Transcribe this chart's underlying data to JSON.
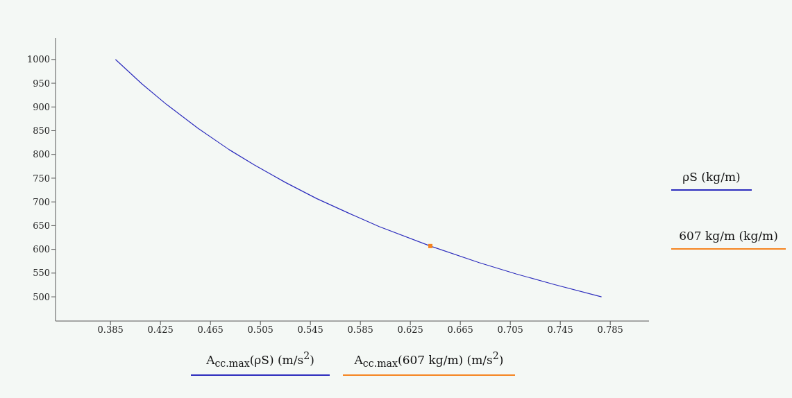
{
  "chart_data": {
    "type": "line",
    "xlabel": "A$_{cc.max}$(ρS)  (m/s$^{2}$)",
    "ylabel": "ρS  (kg/m)",
    "annotations": [
      "A$_{cc.max}$(607 kg/m)  (m/s$^{2}$)",
      "607 kg/m  (kg/m)"
    ],
    "series": [
      {
        "color": "#2b2bbd",
        "marker": "none",
        "x": [
          0.389,
          0.41,
          0.43,
          0.455,
          0.48,
          0.5,
          0.525,
          0.55,
          0.575,
          0.6,
          0.641,
          0.68,
          0.71,
          0.74,
          0.778
        ],
        "values": [
          1000,
          949,
          905,
          855,
          810,
          778,
          741,
          707,
          677,
          648,
          607,
          572,
          548,
          526,
          500
        ]
      },
      {
        "type": "scatter",
        "color": "#f5841f",
        "marker": "square",
        "x": [
          0.641
        ],
        "values": [
          607
        ]
      }
    ],
    "xlim": [
      0.341,
      0.816
    ],
    "xticks": [
      0.385,
      0.425,
      0.465,
      0.505,
      0.545,
      0.585,
      0.625,
      0.665,
      0.705,
      0.745,
      0.785
    ],
    "ylim": [
      449,
      1045
    ],
    "yticks": [
      500,
      550,
      600,
      650,
      700,
      750,
      800,
      850,
      900,
      950,
      1000
    ],
    "grid": false
  }
}
